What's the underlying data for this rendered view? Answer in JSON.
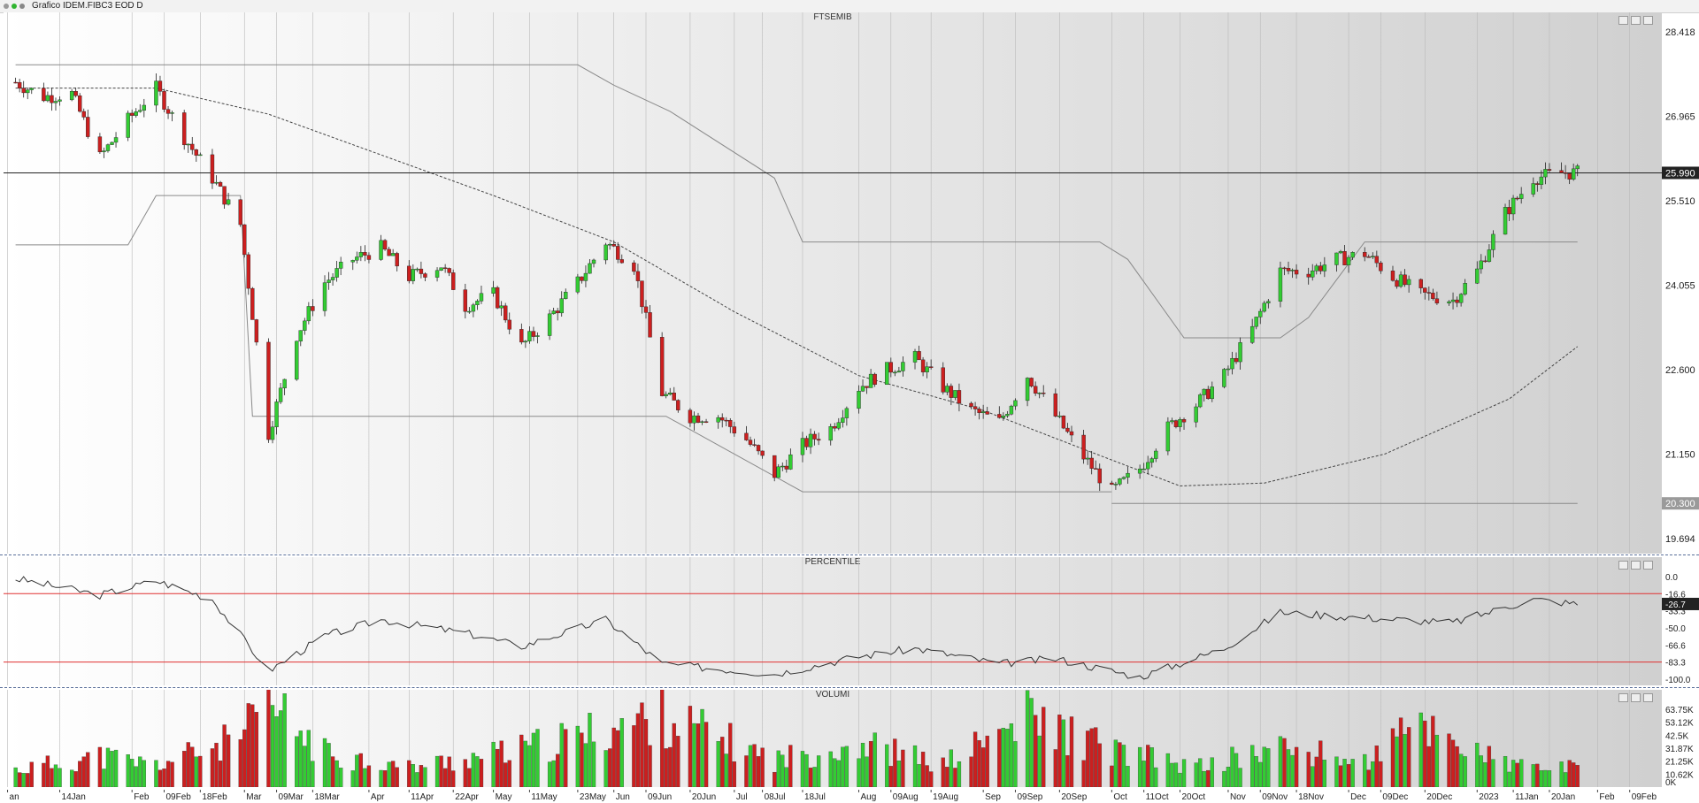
{
  "window": {
    "title": "Grafico IDEM.FIBC3 EOD D"
  },
  "panels": {
    "price": "FTSEMIB",
    "percentile": "PERCENTILE",
    "volume": "VOLUMI"
  },
  "colors": {
    "up": "#33cc33",
    "down": "#cc1f1f",
    "ref": "#e03030",
    "line": "#333333"
  },
  "chart_data": [
    {
      "type": "candlestick",
      "title": "FTSEMIB",
      "ylim": [
        19694,
        28418
      ],
      "yticks": [
        "28.418",
        "26.965",
        "25.510",
        "24.055",
        "22.600",
        "21.150",
        "19.694"
      ],
      "last_label": "25.990",
      "support_label": "20.300",
      "horizontal_line": 25990,
      "support_line": 20300,
      "close_path": [
        {
          "x": "2022-01-03",
          "y": 27550
        },
        {
          "x": "2022-01-10",
          "y": 27300
        },
        {
          "x": "2022-01-17",
          "y": 27350
        },
        {
          "x": "2022-01-24",
          "y": 26250
        },
        {
          "x": "2022-01-31",
          "y": 26900
        },
        {
          "x": "2022-02-07",
          "y": 27450
        },
        {
          "x": "2022-02-14",
          "y": 26600
        },
        {
          "x": "2022-02-21",
          "y": 25900
        },
        {
          "x": "2022-02-28",
          "y": 25100
        },
        {
          "x": "2022-03-07",
          "y": 21500
        },
        {
          "x": "2022-03-14",
          "y": 23200
        },
        {
          "x": "2022-03-21",
          "y": 24100
        },
        {
          "x": "2022-03-28",
          "y": 24500
        },
        {
          "x": "2022-04-04",
          "y": 24700
        },
        {
          "x": "2022-04-11",
          "y": 24200
        },
        {
          "x": "2022-04-19",
          "y": 24400
        },
        {
          "x": "2022-04-25",
          "y": 23700
        },
        {
          "x": "2022-05-02",
          "y": 23900
        },
        {
          "x": "2022-05-09",
          "y": 23000
        },
        {
          "x": "2022-05-16",
          "y": 23500
        },
        {
          "x": "2022-05-23",
          "y": 24100
        },
        {
          "x": "2022-05-30",
          "y": 24800
        },
        {
          "x": "2022-06-06",
          "y": 24400
        },
        {
          "x": "2022-06-13",
          "y": 22200
        },
        {
          "x": "2022-06-20",
          "y": 21800
        },
        {
          "x": "2022-06-27",
          "y": 21800
        },
        {
          "x": "2022-07-04",
          "y": 21400
        },
        {
          "x": "2022-07-11",
          "y": 20800
        },
        {
          "x": "2022-07-18",
          "y": 21300
        },
        {
          "x": "2022-07-25",
          "y": 21600
        },
        {
          "x": "2022-08-01",
          "y": 22300
        },
        {
          "x": "2022-08-08",
          "y": 22600
        },
        {
          "x": "2022-08-15",
          "y": 22800
        },
        {
          "x": "2022-08-22",
          "y": 22300
        },
        {
          "x": "2022-08-29",
          "y": 21900
        },
        {
          "x": "2022-09-05",
          "y": 21700
        },
        {
          "x": "2022-09-12",
          "y": 22500
        },
        {
          "x": "2022-09-19",
          "y": 21800
        },
        {
          "x": "2022-09-26",
          "y": 21100
        },
        {
          "x": "2022-10-03",
          "y": 20500
        },
        {
          "x": "2022-10-10",
          "y": 20900
        },
        {
          "x": "2022-10-17",
          "y": 21600
        },
        {
          "x": "2022-10-24",
          "y": 22000
        },
        {
          "x": "2022-10-31",
          "y": 22500
        },
        {
          "x": "2022-11-07",
          "y": 23300
        },
        {
          "x": "2022-11-14",
          "y": 24300
        },
        {
          "x": "2022-11-21",
          "y": 24300
        },
        {
          "x": "2022-11-28",
          "y": 24500
        },
        {
          "x": "2022-12-05",
          "y": 24600
        },
        {
          "x": "2022-12-12",
          "y": 24200
        },
        {
          "x": "2022-12-19",
          "y": 23900
        },
        {
          "x": "2022-12-27",
          "y": 23800
        },
        {
          "x": "2023-01-02",
          "y": 24300
        },
        {
          "x": "2023-01-09",
          "y": 25300
        },
        {
          "x": "2023-01-16",
          "y": 25900
        },
        {
          "x": "2023-01-23",
          "y": 25990
        }
      ],
      "moving_average": [
        {
          "x": "2022-01-03",
          "y": 27450
        },
        {
          "x": "2022-02-07",
          "y": 27450
        },
        {
          "x": "2022-03-07",
          "y": 27000
        },
        {
          "x": "2022-04-04",
          "y": 26300
        },
        {
          "x": "2022-05-02",
          "y": 25600
        },
        {
          "x": "2022-06-01",
          "y": 24800
        },
        {
          "x": "2022-07-01",
          "y": 23600
        },
        {
          "x": "2022-08-01",
          "y": 22500
        },
        {
          "x": "2022-09-01",
          "y": 21900
        },
        {
          "x": "2022-10-01",
          "y": 21100
        },
        {
          "x": "2022-10-20",
          "y": 20600
        },
        {
          "x": "2022-11-10",
          "y": 20650
        },
        {
          "x": "2022-12-10",
          "y": 21150
        },
        {
          "x": "2023-01-10",
          "y": 22100
        },
        {
          "x": "2023-01-27",
          "y": 23000
        }
      ],
      "envelope": [
        {
          "x": "2022-01-03",
          "y": 27850
        },
        {
          "x": "2022-05-23",
          "y": 27850
        },
        {
          "x": "2022-06-01",
          "y": 27500
        },
        {
          "x": "2022-06-15",
          "y": 27050
        },
        {
          "x": "2022-07-11",
          "y": 25900
        },
        {
          "x": "2022-07-18",
          "y": 24800
        },
        {
          "x": "2022-09-30",
          "y": 24800
        },
        {
          "x": "2022-10-07",
          "y": 24500
        },
        {
          "x": "2022-10-21",
          "y": 23150
        },
        {
          "x": "2022-11-14",
          "y": 23150
        },
        {
          "x": "2022-11-21",
          "y": 23500
        },
        {
          "x": "2022-12-05",
          "y": 24800
        },
        {
          "x": "2023-01-27",
          "y": 24800
        }
      ],
      "lower_channel": [
        {
          "x": "2022-01-03",
          "y": 24750
        },
        {
          "x": "2022-01-31",
          "y": 24750
        },
        {
          "x": "2022-02-07",
          "y": 25600
        },
        {
          "x": "2022-02-28",
          "y": 25600
        },
        {
          "x": "2022-03-03",
          "y": 21800
        },
        {
          "x": "2022-06-14",
          "y": 21800
        },
        {
          "x": "2022-07-18",
          "y": 20500
        },
        {
          "x": "2022-10-03",
          "y": 20500
        }
      ]
    },
    {
      "type": "line",
      "title": "PERCENTILE",
      "ylim": [
        -100,
        0
      ],
      "yticks": [
        "0.0",
        "-16.6",
        "-33.3",
        "-50.0",
        "-66.6",
        "-83.3",
        "-100.0"
      ],
      "reference_lines": [
        -16.6,
        -83.3
      ],
      "last_label": "-26.7",
      "values": [
        {
          "x": "2022-01-03",
          "y": -2
        },
        {
          "x": "2022-01-24",
          "y": -18
        },
        {
          "x": "2022-02-07",
          "y": -4
        },
        {
          "x": "2022-02-21",
          "y": -22
        },
        {
          "x": "2022-03-07",
          "y": -92
        },
        {
          "x": "2022-03-21",
          "y": -58
        },
        {
          "x": "2022-04-04",
          "y": -42
        },
        {
          "x": "2022-04-25",
          "y": -55
        },
        {
          "x": "2022-05-09",
          "y": -68
        },
        {
          "x": "2022-05-30",
          "y": -42
        },
        {
          "x": "2022-06-13",
          "y": -85
        },
        {
          "x": "2022-07-11",
          "y": -95
        },
        {
          "x": "2022-08-01",
          "y": -78
        },
        {
          "x": "2022-08-15",
          "y": -70
        },
        {
          "x": "2022-09-05",
          "y": -85
        },
        {
          "x": "2022-09-19",
          "y": -80
        },
        {
          "x": "2022-10-10",
          "y": -98
        },
        {
          "x": "2022-10-31",
          "y": -70
        },
        {
          "x": "2022-11-14",
          "y": -35
        },
        {
          "x": "2022-12-05",
          "y": -40
        },
        {
          "x": "2022-12-27",
          "y": -45
        },
        {
          "x": "2023-01-16",
          "y": -22
        },
        {
          "x": "2023-01-27",
          "y": -26.7
        }
      ]
    },
    {
      "type": "bar",
      "title": "VOLUMI",
      "ylim": [
        0,
        68000
      ],
      "yticks": [
        "63.75K",
        "53.12K",
        "42.5K",
        "31.87K",
        "21.25K",
        "10.62K",
        "0K"
      ],
      "values": [
        {
          "x": "2022-01-03",
          "y": 14000
        },
        {
          "x": "2022-01-24",
          "y": 25000
        },
        {
          "x": "2022-02-07",
          "y": 18000
        },
        {
          "x": "2022-02-28",
          "y": 40000
        },
        {
          "x": "2022-03-07",
          "y": 66000
        },
        {
          "x": "2022-03-21",
          "y": 28000
        },
        {
          "x": "2022-04-11",
          "y": 16000
        },
        {
          "x": "2022-05-09",
          "y": 30000
        },
        {
          "x": "2022-06-13",
          "y": 58000
        },
        {
          "x": "2022-07-11",
          "y": 22000
        },
        {
          "x": "2022-08-01",
          "y": 36000
        },
        {
          "x": "2022-08-22",
          "y": 18000
        },
        {
          "x": "2022-09-12",
          "y": 56000
        },
        {
          "x": "2022-10-03",
          "y": 30000
        },
        {
          "x": "2022-10-24",
          "y": 16000
        },
        {
          "x": "2022-11-14",
          "y": 32000
        },
        {
          "x": "2022-12-05",
          "y": 20000
        },
        {
          "x": "2022-12-19",
          "y": 52000
        },
        {
          "x": "2023-01-09",
          "y": 18000
        },
        {
          "x": "2023-01-27",
          "y": 15000
        }
      ]
    }
  ],
  "x_axis": {
    "start": "2021-12-31",
    "end": "2023-02-17",
    "ticks": [
      {
        "d": "2022-01-01",
        "label": "an"
      },
      {
        "d": "2022-01-14",
        "label": "14Jan"
      },
      {
        "d": "2022-02-01",
        "label": "Feb"
      },
      {
        "d": "2022-02-09",
        "label": "09Feb"
      },
      {
        "d": "2022-02-18",
        "label": "18Feb"
      },
      {
        "d": "2022-03-01",
        "label": "Mar"
      },
      {
        "d": "2022-03-09",
        "label": "09Mar"
      },
      {
        "d": "2022-03-18",
        "label": "18Mar"
      },
      {
        "d": "2022-04-01",
        "label": "Apr"
      },
      {
        "d": "2022-04-11",
        "label": "11Apr"
      },
      {
        "d": "2022-04-22",
        "label": "22Apr"
      },
      {
        "d": "2022-05-02",
        "label": "May"
      },
      {
        "d": "2022-05-11",
        "label": "11May"
      },
      {
        "d": "2022-05-23",
        "label": "23May"
      },
      {
        "d": "2022-06-01",
        "label": "Jun"
      },
      {
        "d": "2022-06-09",
        "label": "09Jun"
      },
      {
        "d": "2022-06-20",
        "label": "20Jun"
      },
      {
        "d": "2022-07-01",
        "label": "Jul"
      },
      {
        "d": "2022-07-08",
        "label": "08Jul"
      },
      {
        "d": "2022-07-18",
        "label": "18Jul"
      },
      {
        "d": "2022-08-01",
        "label": "Aug"
      },
      {
        "d": "2022-08-09",
        "label": "09Aug"
      },
      {
        "d": "2022-08-19",
        "label": "19Aug"
      },
      {
        "d": "2022-09-01",
        "label": "Sep"
      },
      {
        "d": "2022-09-09",
        "label": "09Sep"
      },
      {
        "d": "2022-09-20",
        "label": "20Sep"
      },
      {
        "d": "2022-10-03",
        "label": "Oct"
      },
      {
        "d": "2022-10-11",
        "label": "11Oct"
      },
      {
        "d": "2022-10-20",
        "label": "20Oct"
      },
      {
        "d": "2022-11-01",
        "label": "Nov"
      },
      {
        "d": "2022-11-09",
        "label": "09Nov"
      },
      {
        "d": "2022-11-18",
        "label": "18Nov"
      },
      {
        "d": "2022-12-01",
        "label": "Dec"
      },
      {
        "d": "2022-12-09",
        "label": "09Dec"
      },
      {
        "d": "2022-12-20",
        "label": "20Dec"
      },
      {
        "d": "2023-01-02",
        "label": "2023"
      },
      {
        "d": "2023-01-11",
        "label": "11Jan"
      },
      {
        "d": "2023-01-20",
        "label": "20Jan"
      },
      {
        "d": "2023-02-01",
        "label": "Feb"
      },
      {
        "d": "2023-02-09",
        "label": "09Feb"
      }
    ]
  }
}
